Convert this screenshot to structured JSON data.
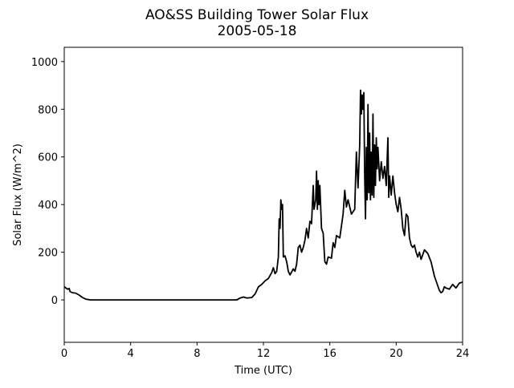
{
  "chart_data": {
    "type": "line",
    "title": "AO&SS Building Tower Solar Flux",
    "subtitle": "2005-05-18",
    "x_label": "Time (UTC)",
    "y_label": "Solar Flux (W/m^2)",
    "color": "#000000",
    "grid": false,
    "xlim": [
      0,
      24
    ],
    "xticks": [
      0,
      4,
      8,
      12,
      16,
      20,
      24
    ],
    "ylim": [
      -178,
      1060
    ],
    "yticks": [
      0,
      200,
      400,
      600,
      800,
      1000
    ],
    "x": [
      0,
      0.1,
      0.2,
      0.3,
      0.35,
      0.5,
      0.7,
      0.9,
      1.1,
      1.3,
      1.6,
      2,
      4,
      6,
      8,
      10,
      10.4,
      10.6,
      10.8,
      11,
      11.3,
      11.5,
      11.7,
      11.9,
      12.1,
      12.3,
      12.5,
      12.6,
      12.7,
      12.8,
      12.9,
      12.95,
      13,
      13.05,
      13.1,
      13.15,
      13.2,
      13.3,
      13.4,
      13.5,
      13.6,
      13.8,
      13.9,
      14,
      14.1,
      14.2,
      14.3,
      14.4,
      14.5,
      14.6,
      14.7,
      14.8,
      14.9,
      15,
      15.05,
      15.1,
      15.15,
      15.2,
      15.25,
      15.3,
      15.35,
      15.4,
      15.5,
      15.6,
      15.7,
      15.8,
      15.9,
      16.1,
      16.2,
      16.3,
      16.4,
      16.6,
      16.8,
      16.9,
      17,
      17.1,
      17.3,
      17.5,
      17.6,
      17.7,
      17.8,
      17.85,
      17.9,
      17.95,
      18,
      18.05,
      18.1,
      18.15,
      18.2,
      18.25,
      18.3,
      18.35,
      18.4,
      18.45,
      18.5,
      18.55,
      18.6,
      18.65,
      18.7,
      18.75,
      18.8,
      18.85,
      18.9,
      19,
      19.1,
      19.2,
      19.3,
      19.4,
      19.5,
      19.55,
      19.6,
      19.7,
      19.8,
      19.9,
      20,
      20.1,
      20.2,
      20.3,
      20.4,
      20.5,
      20.6,
      20.7,
      20.8,
      20.9,
      21,
      21.1,
      21.2,
      21.3,
      21.4,
      21.5,
      21.7,
      21.9,
      22.1,
      22.3,
      22.5,
      22.6,
      22.7,
      22.8,
      22.9,
      23,
      23.2,
      23.3,
      23.4,
      23.6,
      23.8,
      24
    ],
    "values": [
      55,
      50,
      45,
      48,
      35,
      30,
      28,
      20,
      10,
      3,
      0,
      0,
      0,
      0,
      0,
      0,
      0,
      8,
      12,
      8,
      10,
      25,
      55,
      65,
      80,
      90,
      115,
      135,
      110,
      120,
      180,
      340,
      300,
      420,
      380,
      400,
      180,
      185,
      160,
      120,
      105,
      130,
      120,
      150,
      220,
      230,
      200,
      220,
      250,
      300,
      260,
      330,
      320,
      480,
      380,
      400,
      420,
      540,
      380,
      500,
      400,
      480,
      300,
      280,
      160,
      150,
      180,
      175,
      240,
      220,
      270,
      260,
      360,
      460,
      390,
      420,
      360,
      380,
      620,
      470,
      650,
      880,
      780,
      860,
      800,
      870,
      520,
      340,
      640,
      420,
      820,
      450,
      700,
      420,
      620,
      440,
      780,
      430,
      650,
      480,
      680,
      550,
      640,
      500,
      580,
      510,
      560,
      480,
      680,
      430,
      520,
      440,
      520,
      450,
      400,
      370,
      430,
      380,
      300,
      270,
      360,
      350,
      260,
      230,
      220,
      230,
      200,
      180,
      200,
      170,
      210,
      195,
      160,
      100,
      60,
      40,
      30,
      35,
      55,
      50,
      45,
      55,
      65,
      50,
      70,
      75
    ]
  }
}
